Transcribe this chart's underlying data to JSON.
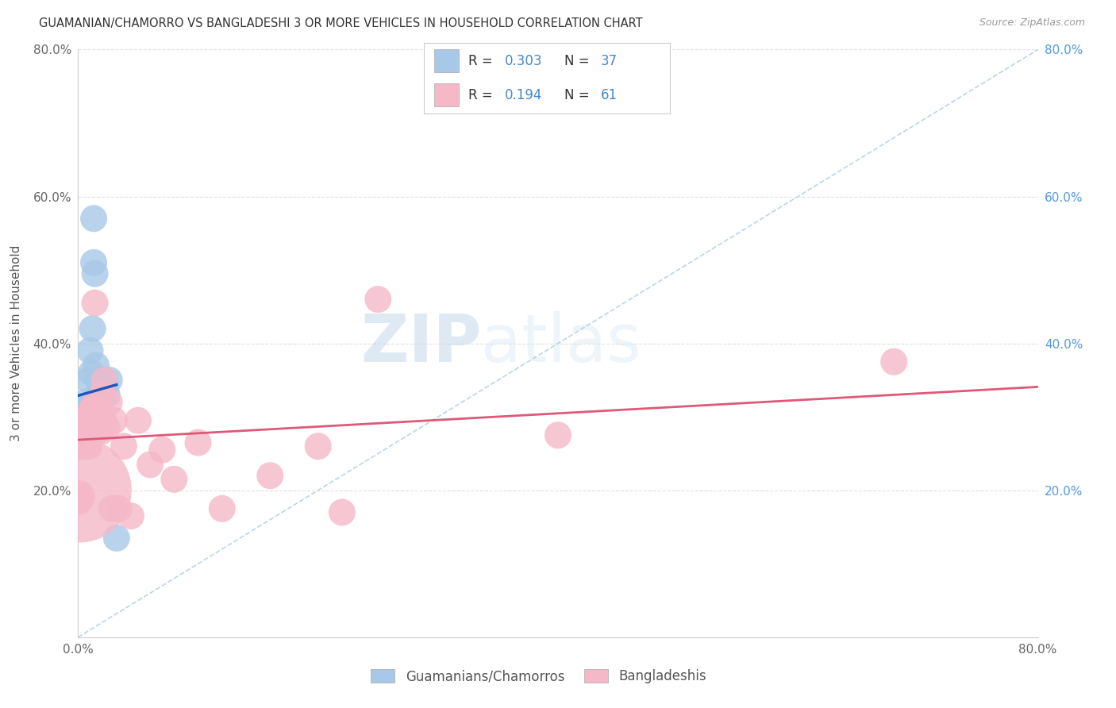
{
  "title": "GUAMANIAN/CHAMORRO VS BANGLADESHI 3 OR MORE VEHICLES IN HOUSEHOLD CORRELATION CHART",
  "source": "Source: ZipAtlas.com",
  "ylabel": "3 or more Vehicles in Household",
  "xlim": [
    0,
    0.8
  ],
  "ylim": [
    0,
    0.8
  ],
  "xticks": [
    0.0,
    0.2,
    0.4,
    0.6,
    0.8
  ],
  "yticks": [
    0.0,
    0.2,
    0.4,
    0.6,
    0.8
  ],
  "xticklabels": [
    "0.0%",
    "",
    "",
    "",
    "80.0%"
  ],
  "yticklabels": [
    "",
    "20.0%",
    "40.0%",
    "60.0%",
    "80.0%"
  ],
  "right_yticklabels": [
    "",
    "20.0%",
    "40.0%",
    "60.0%",
    "80.0%"
  ],
  "legend_labels": [
    "Guamanians/Chamorros",
    "Bangladeshis"
  ],
  "R_blue": "0.303",
  "N_blue": "37",
  "R_pink": "0.194",
  "N_pink": "61",
  "blue_color": "#a8c8e8",
  "pink_color": "#f5b8c8",
  "blue_line_color": "#2255bb",
  "pink_line_color": "#e05878",
  "ref_line_color": "#aaccdd",
  "blue_scatter_x": [
    0.001,
    0.002,
    0.003,
    0.003,
    0.004,
    0.004,
    0.005,
    0.005,
    0.006,
    0.006,
    0.007,
    0.007,
    0.007,
    0.008,
    0.008,
    0.009,
    0.009,
    0.01,
    0.01,
    0.011,
    0.012,
    0.012,
    0.013,
    0.013,
    0.014,
    0.014,
    0.015,
    0.016,
    0.017,
    0.018,
    0.019,
    0.02,
    0.021,
    0.022,
    0.024,
    0.026,
    0.032
  ],
  "blue_scatter_y": [
    0.3,
    0.295,
    0.31,
    0.29,
    0.305,
    0.285,
    0.3,
    0.31,
    0.295,
    0.32,
    0.29,
    0.305,
    0.295,
    0.31,
    0.295,
    0.35,
    0.3,
    0.39,
    0.295,
    0.36,
    0.42,
    0.3,
    0.51,
    0.57,
    0.495,
    0.31,
    0.37,
    0.32,
    0.35,
    0.34,
    0.33,
    0.35,
    0.34,
    0.35,
    0.33,
    0.35,
    0.135
  ],
  "blue_scatter_s": [
    40,
    40,
    40,
    40,
    40,
    40,
    40,
    40,
    40,
    40,
    40,
    40,
    40,
    50,
    40,
    40,
    40,
    40,
    40,
    40,
    40,
    40,
    40,
    40,
    40,
    40,
    40,
    40,
    40,
    40,
    40,
    40,
    40,
    40,
    40,
    40,
    40
  ],
  "pink_scatter_x": [
    0.001,
    0.001,
    0.002,
    0.002,
    0.003,
    0.003,
    0.003,
    0.004,
    0.004,
    0.004,
    0.005,
    0.005,
    0.005,
    0.006,
    0.006,
    0.006,
    0.007,
    0.007,
    0.007,
    0.008,
    0.008,
    0.008,
    0.009,
    0.009,
    0.009,
    0.01,
    0.01,
    0.011,
    0.011,
    0.012,
    0.012,
    0.013,
    0.013,
    0.014,
    0.015,
    0.016,
    0.017,
    0.018,
    0.019,
    0.02,
    0.021,
    0.022,
    0.024,
    0.026,
    0.028,
    0.03,
    0.034,
    0.038,
    0.044,
    0.05,
    0.06,
    0.07,
    0.08,
    0.1,
    0.12,
    0.16,
    0.2,
    0.22,
    0.25,
    0.4,
    0.68
  ],
  "pink_scatter_y": [
    0.2,
    0.185,
    0.265,
    0.195,
    0.275,
    0.26,
    0.19,
    0.285,
    0.265,
    0.27,
    0.27,
    0.28,
    0.26,
    0.275,
    0.26,
    0.28,
    0.265,
    0.275,
    0.285,
    0.27,
    0.26,
    0.28,
    0.275,
    0.26,
    0.29,
    0.295,
    0.305,
    0.285,
    0.31,
    0.3,
    0.31,
    0.295,
    0.315,
    0.455,
    0.28,
    0.305,
    0.31,
    0.29,
    0.28,
    0.33,
    0.295,
    0.35,
    0.285,
    0.32,
    0.175,
    0.295,
    0.175,
    0.26,
    0.165,
    0.295,
    0.235,
    0.255,
    0.215,
    0.265,
    0.175,
    0.22,
    0.26,
    0.17,
    0.46,
    0.275,
    0.375
  ],
  "pink_scatter_s": [
    600,
    40,
    40,
    40,
    40,
    40,
    40,
    40,
    40,
    40,
    40,
    40,
    40,
    40,
    40,
    40,
    40,
    40,
    40,
    40,
    40,
    40,
    40,
    40,
    40,
    40,
    40,
    40,
    40,
    40,
    40,
    40,
    40,
    40,
    40,
    40,
    40,
    40,
    40,
    40,
    40,
    40,
    40,
    40,
    40,
    40,
    40,
    40,
    40,
    40,
    40,
    40,
    40,
    40,
    40,
    40,
    40,
    40,
    40,
    40,
    40
  ],
  "watermark_zip": "ZIP",
  "watermark_atlas": "atlas",
  "background_color": "#ffffff",
  "grid_color": "#e0e0e0"
}
